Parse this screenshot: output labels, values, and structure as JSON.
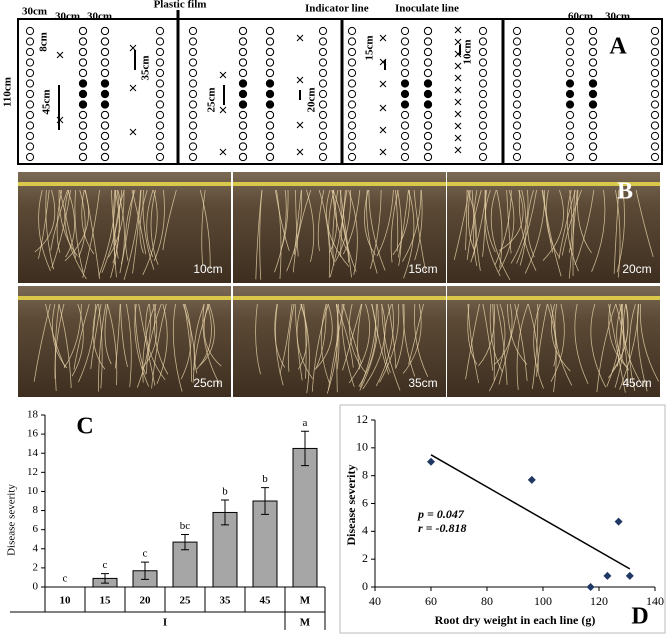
{
  "panel_a": {
    "letter": "A",
    "labels": [
      "30cm",
      "30cm",
      "30cm",
      "Plastic film",
      "Indicator line",
      "Inoculate line",
      "60cm",
      "30cm",
      "8cm",
      "45cm",
      "35cm",
      "25cm",
      "20cm",
      "15cm",
      "10cm",
      "110cm"
    ]
  },
  "panel_b": {
    "letter": "B",
    "labels": [
      "10cm",
      "15cm",
      "20cm",
      "25cm",
      "35cm",
      "45cm"
    ]
  },
  "chart_data": [
    {
      "type": "bar",
      "panel": "C",
      "y_label": "Disease severity",
      "categories": [
        "10",
        "15",
        "20",
        "25",
        "35",
        "45",
        "M"
      ],
      "groups": [
        "I",
        "M"
      ],
      "values": [
        0,
        0.9,
        1.7,
        4.7,
        7.8,
        9.0,
        14.5
      ],
      "errors": [
        0,
        0.5,
        0.9,
        0.8,
        1.3,
        1.4,
        1.8
      ],
      "letters": [
        "c",
        "c",
        "c",
        "bc",
        "b",
        "b",
        "a"
      ],
      "color": "#a6a6a6",
      "ylim": [
        0,
        18
      ],
      "yticks": [
        0,
        2,
        4,
        6,
        8,
        10,
        12,
        14,
        16,
        18
      ]
    },
    {
      "type": "scatter",
      "panel": "D",
      "x_label": "Root dry weight in each line (g)",
      "y_label": "Disease severity",
      "x": [
        60,
        96,
        117,
        123,
        127,
        131
      ],
      "values": [
        9.0,
        7.7,
        0,
        0.8,
        4.7,
        0.8
      ],
      "trend_x": [
        60,
        131
      ],
      "trend_y": [
        9.5,
        1.3
      ],
      "annotations": [
        "p = 0.047",
        "r = -0.818"
      ],
      "color": "#1f3864",
      "xlim": [
        40,
        140
      ],
      "xticks": [
        40,
        60,
        80,
        100,
        120,
        140
      ],
      "ylim": [
        0,
        12
      ],
      "yticks": [
        0,
        2,
        4,
        6,
        8,
        10,
        12
      ]
    }
  ]
}
